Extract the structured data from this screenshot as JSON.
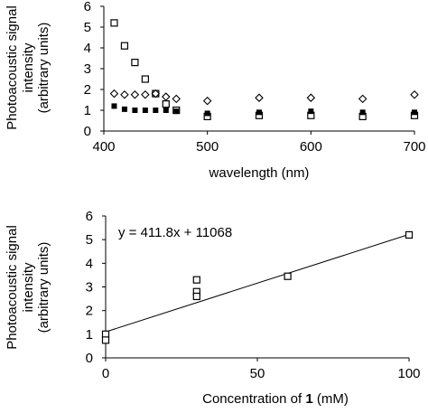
{
  "chart_data": [
    {
      "type": "scatter",
      "title": "",
      "xlabel": "wavelength (nm)",
      "ylabel": [
        "Photoacoustic signal",
        "intensity",
        "(arbitrary units)"
      ],
      "xlim": [
        400,
        700
      ],
      "ylim": [
        0,
        6
      ],
      "xticks": [
        400,
        500,
        600,
        700
      ],
      "yticks": [
        0,
        1,
        2,
        3,
        4,
        5,
        6
      ],
      "grid": false,
      "legend": "none",
      "series": [
        {
          "marker": "open-square",
          "points": [
            [
              410,
              5.2
            ],
            [
              420,
              4.1
            ],
            [
              430,
              3.3
            ],
            [
              440,
              2.5
            ],
            [
              450,
              1.8
            ],
            [
              460,
              1.3
            ],
            [
              470,
              1.0
            ],
            [
              500,
              0.7
            ],
            [
              550,
              0.75
            ],
            [
              600,
              0.75
            ],
            [
              650,
              0.7
            ],
            [
              700,
              0.75
            ]
          ]
        },
        {
          "marker": "open-diamond",
          "points": [
            [
              410,
              1.8
            ],
            [
              420,
              1.75
            ],
            [
              430,
              1.75
            ],
            [
              440,
              1.75
            ],
            [
              450,
              1.8
            ],
            [
              460,
              1.65
            ],
            [
              470,
              1.55
            ],
            [
              500,
              1.45
            ],
            [
              550,
              1.6
            ],
            [
              600,
              1.6
            ],
            [
              650,
              1.55
            ],
            [
              700,
              1.75
            ]
          ]
        },
        {
          "marker": "filled-square",
          "points": [
            [
              410,
              1.2
            ],
            [
              420,
              1.05
            ],
            [
              430,
              1.0
            ],
            [
              440,
              1.0
            ],
            [
              450,
              1.0
            ],
            [
              460,
              1.0
            ],
            [
              470,
              0.95
            ],
            [
              500,
              0.85
            ],
            [
              550,
              0.9
            ],
            [
              600,
              0.95
            ],
            [
              650,
              0.9
            ],
            [
              700,
              0.9
            ]
          ]
        }
      ]
    },
    {
      "type": "scatter",
      "title": "",
      "xlabel_parts": [
        "Concentration of ",
        "1",
        " (mM)"
      ],
      "ylabel": [
        "Photoacoustic signal",
        "intensity",
        "(arbitrary units)"
      ],
      "xlim": [
        0,
        100
      ],
      "ylim": [
        0,
        6
      ],
      "xticks": [
        0,
        50,
        100
      ],
      "yticks": [
        0,
        1,
        2,
        3,
        4,
        5,
        6
      ],
      "grid": false,
      "legend": "none",
      "annotation": "y = 411.8x + 11068",
      "trendline": {
        "x": [
          0,
          100
        ],
        "y": [
          1.1,
          5.22
        ]
      },
      "series": [
        {
          "marker": "open-square",
          "points": [
            [
              0,
              1.0
            ],
            [
              0,
              0.75
            ],
            [
              30,
              3.3
            ],
            [
              30,
              2.8
            ],
            [
              30,
              2.6
            ],
            [
              60,
              3.45
            ],
            [
              100,
              5.2
            ]
          ]
        }
      ]
    }
  ]
}
